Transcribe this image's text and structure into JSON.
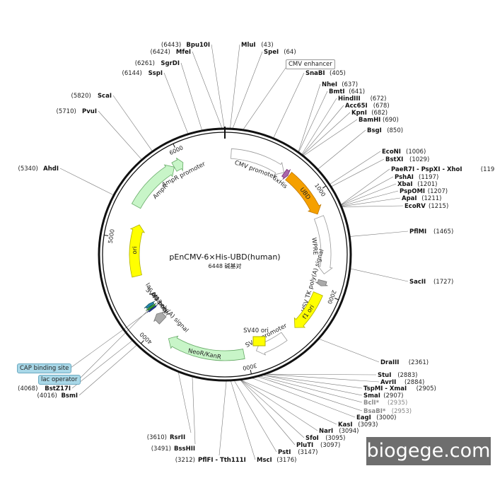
{
  "plasmid": {
    "name": "pEnCMV-6×His-UBD(human)",
    "size_text": "6448 碱基对",
    "total_bp": 6448
  },
  "ticks": [
    "1000",
    "2000",
    "3000",
    "4000",
    "5000",
    "6000"
  ],
  "features": [
    {
      "name": "CMV promoter",
      "start": 64,
      "end": 640,
      "ring": "outer",
      "color": "#ffffff",
      "stroke": "#999999",
      "label_side": "in"
    },
    {
      "name": "6xHis",
      "start": 645,
      "end": 690,
      "ring": "outer",
      "color": "#aa66aa",
      "stroke": "#773377",
      "label_side": "in"
    },
    {
      "name": "UBD",
      "start": 700,
      "end": 1190,
      "ring": "outer",
      "color": "#f5a000",
      "stroke": "#c07800",
      "label_side": "on"
    },
    {
      "name": "WPRE",
      "start": 1225,
      "end": 1810,
      "ring": "outer",
      "color": "#ffffff",
      "stroke": "#999999",
      "label_side": "in"
    },
    {
      "name": "HSV TK poly(A) signal",
      "start": 1880,
      "end": 1935,
      "ring": "outer",
      "color": "#aaaaaa",
      "stroke": "#777777",
      "label_side": "in"
    },
    {
      "name": "f1 ori",
      "start": 2020,
      "end": 2440,
      "ring": "outer",
      "color": "#ffff00",
      "stroke": "#b0b000",
      "label_side": "on"
    },
    {
      "name": "SV40 promoter",
      "start": 2580,
      "end": 2900,
      "ring": "outer",
      "color": "#ffffff",
      "stroke": "#999999",
      "label_side": "in"
    },
    {
      "name": "NeoR/KanR",
      "start": 3030,
      "end": 3830,
      "ring": "outer",
      "color": "#c8f5c8",
      "stroke": "#66aa66",
      "label_side": "on"
    },
    {
      "name": "SV40 poly(A) signal",
      "start": 4000,
      "end": 4100,
      "ring": "inner",
      "color": "#aaaaaa",
      "stroke": "#777777",
      "label_side": "in"
    },
    {
      "name": "M13 rev",
      "start": 4170,
      "end": 4185,
      "ring": "inner",
      "color": "#2244aa",
      "stroke": "#112266",
      "label_side": "in"
    },
    {
      "name": "lac operator",
      "start": 4190,
      "end": 4210,
      "ring": "inner",
      "color": "#33aa33",
      "stroke": "#226622",
      "label_side": "none"
    },
    {
      "name": "lac promoter",
      "start": 4215,
      "end": 4245,
      "ring": "inner",
      "color": "#2288aa",
      "stroke": "#115566",
      "label_side": "in"
    },
    {
      "name": "ori",
      "start": 4590,
      "end": 5180,
      "ring": "inner",
      "color": "#ffff00",
      "stroke": "#b0b000",
      "label_side": "on"
    },
    {
      "name": "AmpR",
      "start": 5350,
      "end": 5910,
      "ring": "outer",
      "color": "#c8f5c8",
      "stroke": "#66aa66",
      "label_side": "in"
    },
    {
      "name": "AmpR promoter",
      "start": 5910,
      "end": 6010,
      "ring": "outer",
      "color": "#c8f5c8",
      "stroke": "#66aa66",
      "label_side": "in"
    }
  ],
  "sv40ori": {
    "name": "SV40 ori"
  },
  "sites": [
    {
      "name": "Bpu10I",
      "pos": "(6443)",
      "p": 6443,
      "side": "L",
      "row": 0
    },
    {
      "name": "MfeI",
      "pos": "(6424)",
      "p": 6424,
      "side": "L",
      "row": 1
    },
    {
      "name": "SgrDI",
      "pos": "(6261)",
      "p": 6261,
      "side": "L",
      "row": 2
    },
    {
      "name": "SspI",
      "pos": "(6144)",
      "p": 6144,
      "side": "L",
      "row": 3
    },
    {
      "name": "ScaI",
      "pos": "(5820)",
      "p": 5820,
      "side": "L",
      "row": 4
    },
    {
      "name": "PvuI",
      "pos": "(5710)",
      "p": 5710,
      "side": "L",
      "row": 5
    },
    {
      "name": "AhdI",
      "pos": "(5340)",
      "p": 5340,
      "side": "L",
      "row": 6
    },
    {
      "name": "MluI",
      "pos": "(43)",
      "p": 43,
      "side": "R",
      "row": 0
    },
    {
      "name": "SpeI",
      "pos": "(64)",
      "p": 64,
      "side": "R",
      "row": 1
    },
    {
      "name": "SnaBI",
      "pos": "(405)",
      "p": 405,
      "side": "R",
      "row": 2
    },
    {
      "name": "NheI",
      "pos": "(637)",
      "p": 637,
      "side": "R",
      "row": 3
    },
    {
      "name": "BmtI",
      "pos": "(641)",
      "p": 641,
      "side": "R",
      "row": 4
    },
    {
      "name": "HindIII",
      "pos": "(672)",
      "p": 672,
      "side": "R",
      "row": 5
    },
    {
      "name": "Acc65I",
      "pos": "(678)",
      "p": 678,
      "side": "R",
      "row": 6
    },
    {
      "name": "KpnI",
      "pos": "(682)",
      "p": 682,
      "side": "R",
      "row": 7
    },
    {
      "name": "BamHI",
      "pos": "(690)",
      "p": 690,
      "side": "R",
      "row": 8
    },
    {
      "name": "BsgI",
      "pos": "(850)",
      "p": 850,
      "side": "R",
      "row": 9
    },
    {
      "name": "EcoNI",
      "pos": "(1006)",
      "p": 1006,
      "side": "R",
      "row": 10
    },
    {
      "name": "BstXI",
      "pos": "(1029)",
      "p": 1029,
      "side": "R",
      "row": 11
    },
    {
      "name": "PaeR7I - PspXI - XhoI",
      "pos": "(1195)",
      "p": 1195,
      "side": "R",
      "row": 12
    },
    {
      "name": "PshAI",
      "pos": "(1197)",
      "p": 1197,
      "side": "R",
      "row": 13
    },
    {
      "name": "XbaI",
      "pos": "(1201)",
      "p": 1201,
      "side": "R",
      "row": 14
    },
    {
      "name": "PspOMI",
      "pos": "(1207)",
      "p": 1207,
      "side": "R",
      "row": 15
    },
    {
      "name": "ApaI",
      "pos": "(1211)",
      "p": 1211,
      "side": "R",
      "row": 16
    },
    {
      "name": "EcoRV",
      "pos": "(1215)",
      "p": 1215,
      "side": "R",
      "row": 17
    },
    {
      "name": "PflMI",
      "pos": "(1465)",
      "p": 1465,
      "side": "R",
      "row": 18
    },
    {
      "name": "SacII",
      "pos": "(1727)",
      "p": 1727,
      "side": "R",
      "row": 19
    },
    {
      "name": "DraIII",
      "pos": "(2361)",
      "p": 2361,
      "side": "R",
      "row": 20
    },
    {
      "name": "StuI",
      "pos": "(2883)",
      "p": 2883,
      "side": "R",
      "row": 21
    },
    {
      "name": "AvrII",
      "pos": "(2884)",
      "p": 2884,
      "side": "R",
      "row": 22
    },
    {
      "name": "TspMI - XmaI",
      "pos": "(2905)",
      "p": 2905,
      "side": "R",
      "row": 23
    },
    {
      "name": "SmaI",
      "pos": "(2907)",
      "p": 2907,
      "side": "R",
      "row": 24
    },
    {
      "name": "BclI*",
      "pos": "(2935)",
      "p": 2935,
      "side": "R",
      "row": 25,
      "gray": true
    },
    {
      "name": "BsaBI*",
      "pos": "(2953)",
      "p": 2953,
      "side": "R",
      "row": 26,
      "gray": true
    },
    {
      "name": "EagI",
      "pos": "(3000)",
      "p": 3000,
      "side": "R",
      "row": 27
    },
    {
      "name": "KasI",
      "pos": "(3093)",
      "p": 3093,
      "side": "R",
      "row": 28
    },
    {
      "name": "NarI",
      "pos": "(3094)",
      "p": 3094,
      "side": "R",
      "row": 29
    },
    {
      "name": "SfoI",
      "pos": "(3095)",
      "p": 3095,
      "side": "R",
      "row": 30
    },
    {
      "name": "PluTI",
      "pos": "(3097)",
      "p": 3097,
      "side": "R",
      "row": 31
    },
    {
      "name": "PstI",
      "pos": "(3147)",
      "p": 3147,
      "side": "R",
      "row": 32
    },
    {
      "name": "MscI",
      "pos": "(3176)",
      "p": 3176,
      "side": "R",
      "row": 33
    },
    {
      "name": "PflFI - Tth111I",
      "pos": "(3212)",
      "p": 3212,
      "side": "B",
      "row": 0
    },
    {
      "name": "BssHII",
      "pos": "(3491)",
      "p": 3491,
      "side": "B",
      "row": 1
    },
    {
      "name": "RsrII",
      "pos": "(3610)",
      "p": 3610,
      "side": "B",
      "row": 2
    },
    {
      "name": "BsmI",
      "pos": "(4016)",
      "p": 4016,
      "side": "L",
      "row": 7
    },
    {
      "name": "BstZ17I",
      "pos": "(4068)",
      "p": 4068,
      "side": "L",
      "row": 8
    }
  ],
  "callouts": {
    "cmv_enhancer": "CMV enhancer",
    "cap_site": "CAP binding site",
    "lac_operator": "lac operator"
  },
  "watermark": "biogege.com"
}
